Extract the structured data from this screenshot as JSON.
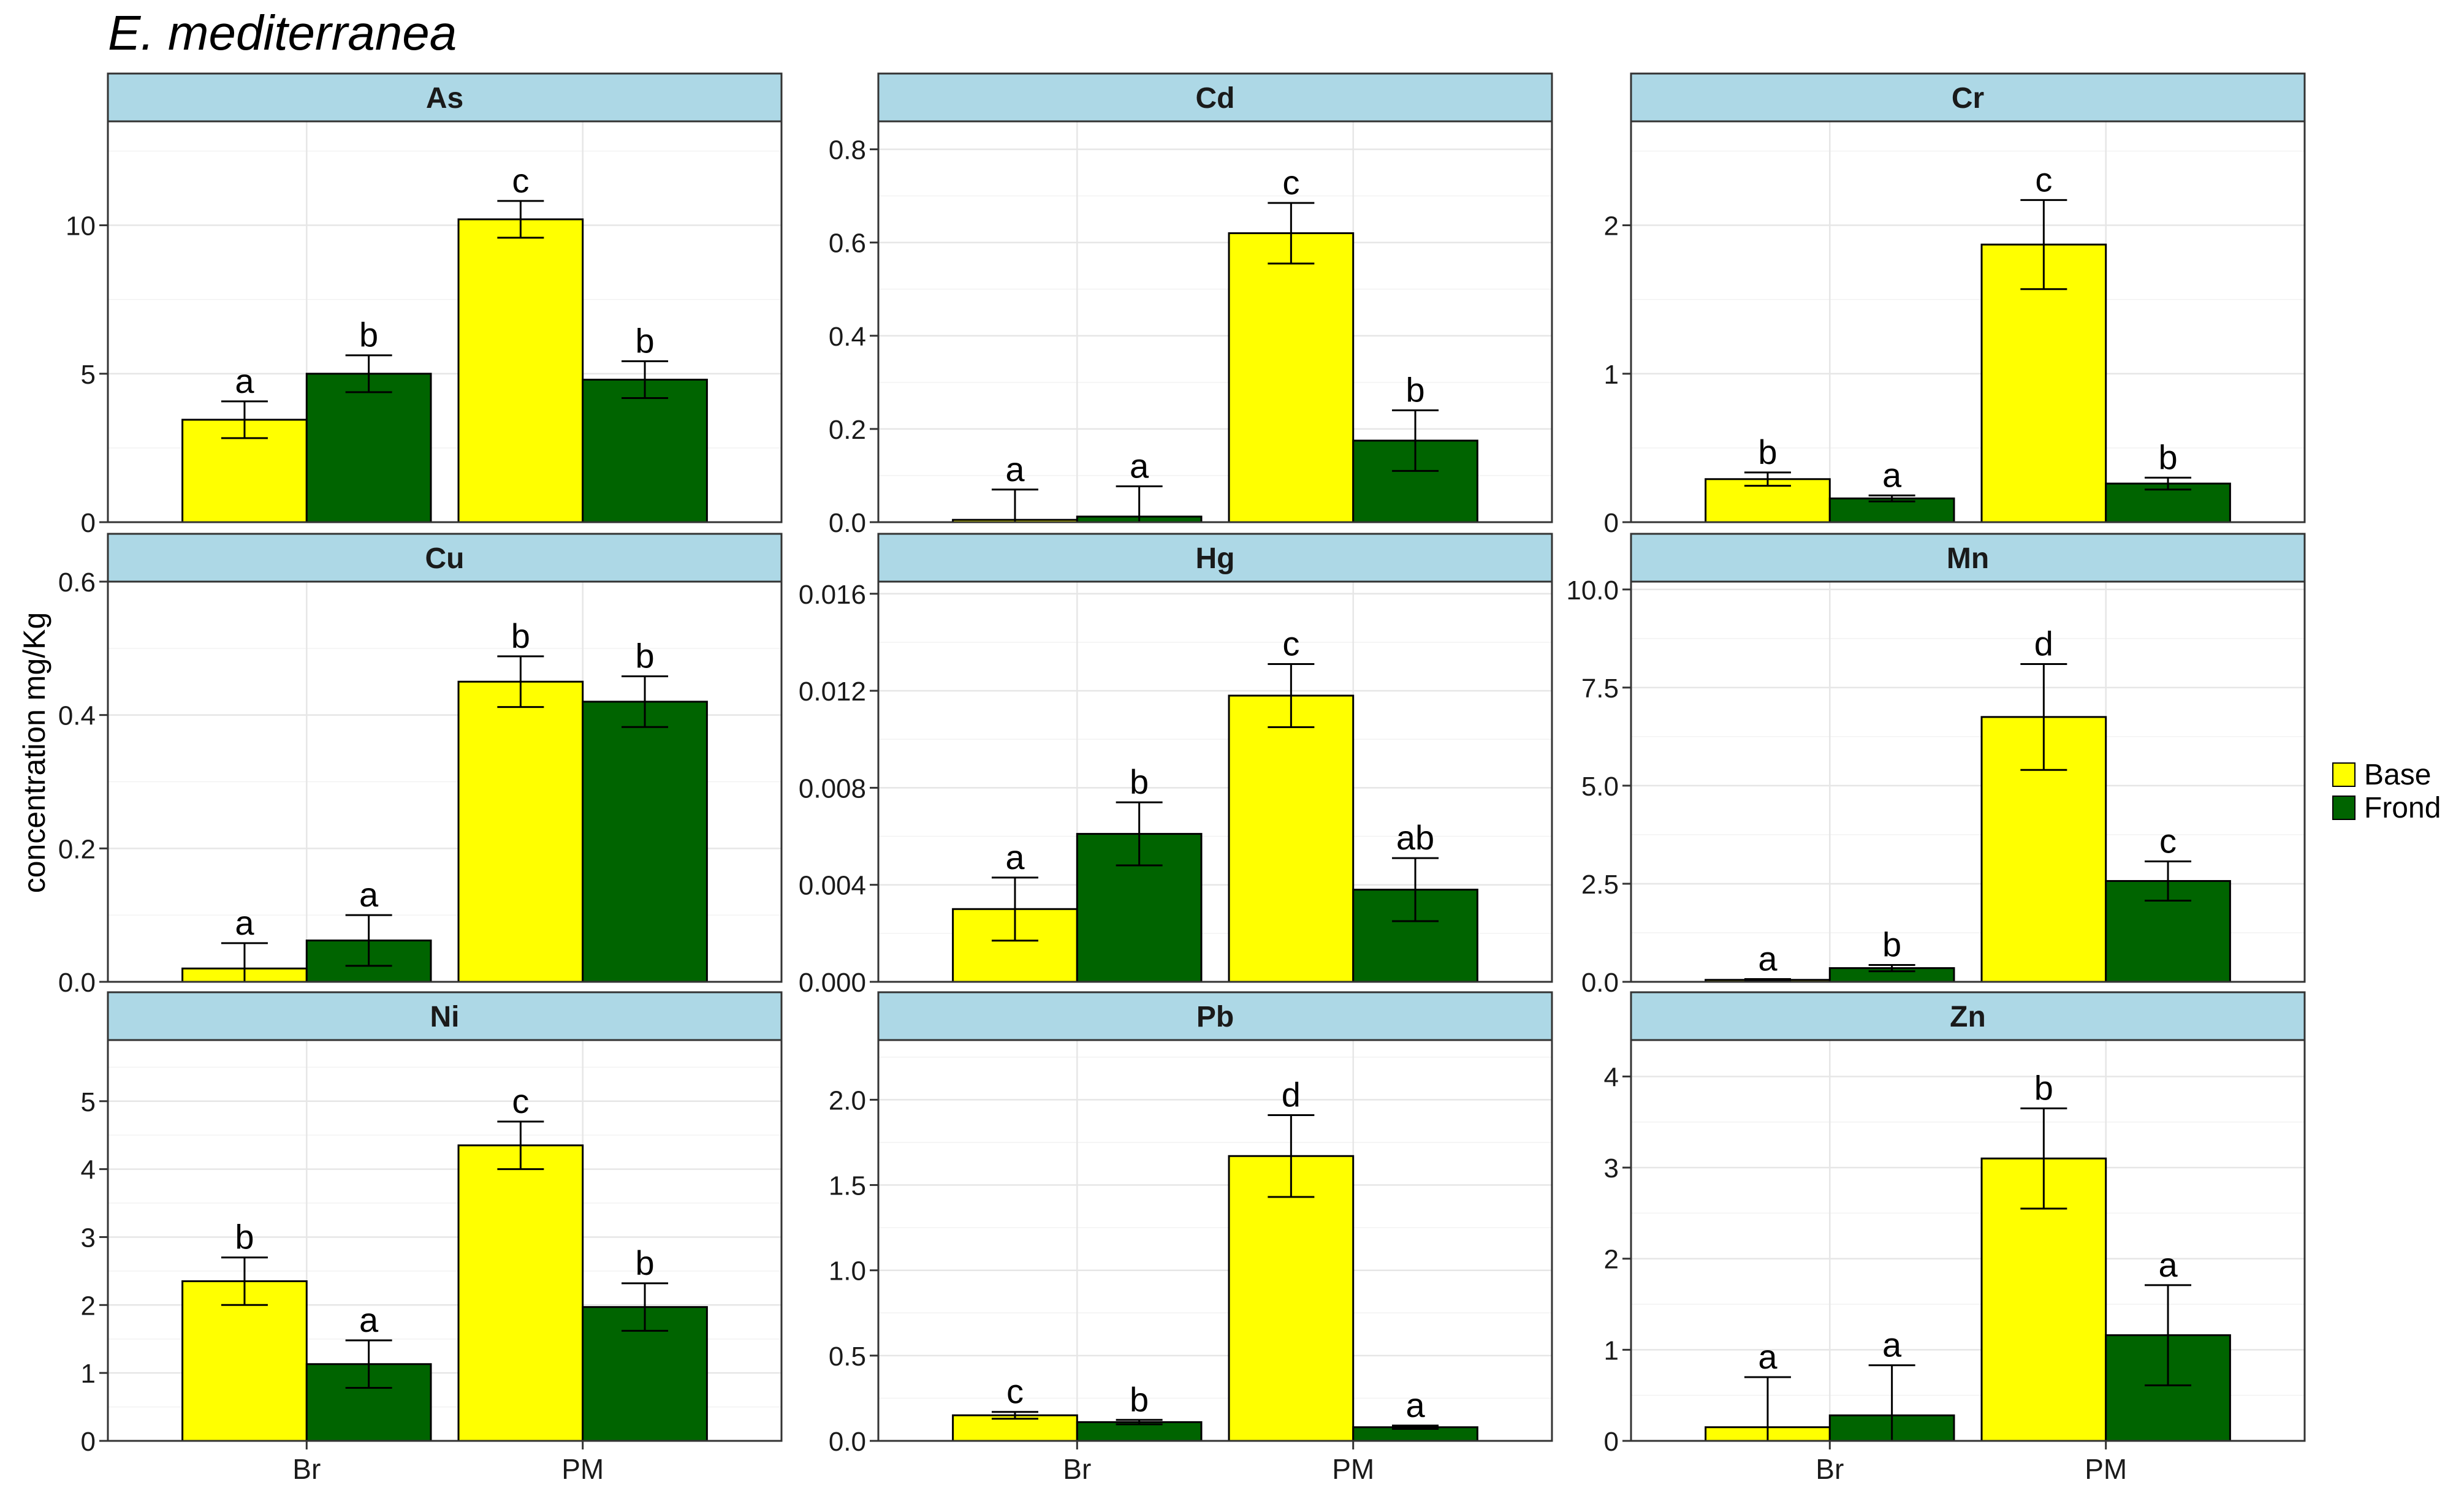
{
  "title": "E. mediterranea",
  "ylabel": "concentration mg/Kg",
  "colors": {
    "Base": "#FFFF00",
    "Frond": "#006400",
    "strip": "#ADD8E6"
  },
  "legend": [
    {
      "label": "Base",
      "color": "#FFFF00"
    },
    {
      "label": "Frond",
      "color": "#006400"
    }
  ],
  "chart_data": [
    {
      "type": "bar",
      "title": "As",
      "categories": [
        "Br",
        "PM"
      ],
      "xlabel": "",
      "ylabel": "concentration mg/Kg",
      "ylim": [
        0,
        13.5
      ],
      "yticks": [
        0,
        5,
        10
      ],
      "ytick_labels": [
        "0",
        "5",
        "10"
      ],
      "grid": true,
      "series": [
        {
          "name": "Base",
          "values": [
            3.45,
            10.2
          ],
          "errors": [
            0.62,
            0.62
          ],
          "letters": [
            "a",
            "c"
          ]
        },
        {
          "name": "Frond",
          "values": [
            5.0,
            4.8
          ],
          "errors": [
            0.62,
            0.62
          ],
          "letters": [
            "b",
            "b"
          ]
        }
      ]
    },
    {
      "type": "bar",
      "title": "Cd",
      "categories": [
        "Br",
        "PM"
      ],
      "xlabel": "",
      "ylabel": "concentration mg/Kg",
      "ylim": [
        0,
        0.86
      ],
      "yticks": [
        0,
        0.2,
        0.4,
        0.6,
        0.8
      ],
      "ytick_labels": [
        "0.0",
        "0.2",
        "0.4",
        "0.6",
        "0.8"
      ],
      "grid": true,
      "series": [
        {
          "name": "Base",
          "values": [
            0.005,
            0.62
          ],
          "errors": [
            0.065,
            0.065
          ],
          "letters": [
            "a",
            "c"
          ]
        },
        {
          "name": "Frond",
          "values": [
            0.012,
            0.175
          ],
          "errors": [
            0.065,
            0.065
          ],
          "letters": [
            "a",
            "b"
          ]
        }
      ]
    },
    {
      "type": "bar",
      "title": "Cr",
      "categories": [
        "Br",
        "PM"
      ],
      "xlabel": "",
      "ylabel": "concentration mg/Kg",
      "ylim": [
        0,
        2.7
      ],
      "yticks": [
        0,
        1,
        2
      ],
      "ytick_labels": [
        "0",
        "1",
        "2"
      ],
      "grid": true,
      "series": [
        {
          "name": "Base",
          "values": [
            0.29,
            1.87
          ],
          "errors": [
            0.045,
            0.3
          ],
          "letters": [
            "b",
            "c"
          ]
        },
        {
          "name": "Frond",
          "values": [
            0.16,
            0.26
          ],
          "errors": [
            0.02,
            0.04
          ],
          "letters": [
            "a",
            "b"
          ]
        }
      ]
    },
    {
      "type": "bar",
      "title": "Cu",
      "categories": [
        "Br",
        "PM"
      ],
      "xlabel": "",
      "ylabel": "concentration mg/Kg",
      "ylim": [
        0,
        0.6
      ],
      "yticks": [
        0,
        0.2,
        0.4,
        0.6
      ],
      "ytick_labels": [
        "0.0",
        "0.2",
        "0.4",
        "0.6"
      ],
      "grid": true,
      "series": [
        {
          "name": "Base",
          "values": [
            0.02,
            0.45
          ],
          "errors": [
            0.038,
            0.038
          ],
          "letters": [
            "a",
            "b"
          ]
        },
        {
          "name": "Frond",
          "values": [
            0.062,
            0.42
          ],
          "errors": [
            0.038,
            0.038
          ],
          "letters": [
            "a",
            "b"
          ]
        }
      ]
    },
    {
      "type": "bar",
      "title": "Hg",
      "categories": [
        "Br",
        "PM"
      ],
      "xlabel": "",
      "ylabel": "concentration mg/Kg",
      "ylim": [
        0,
        0.0165
      ],
      "yticks": [
        0,
        0.004,
        0.008,
        0.012,
        0.016
      ],
      "ytick_labels": [
        "0.000",
        "0.004",
        "0.008",
        "0.012",
        "0.016"
      ],
      "grid": true,
      "series": [
        {
          "name": "Base",
          "values": [
            0.003,
            0.0118
          ],
          "errors": [
            0.0013,
            0.0013
          ],
          "letters": [
            "a",
            "c"
          ]
        },
        {
          "name": "Frond",
          "values": [
            0.0061,
            0.0038
          ],
          "errors": [
            0.0013,
            0.0013
          ],
          "letters": [
            "b",
            "ab"
          ]
        }
      ]
    },
    {
      "type": "bar",
      "title": "Mn",
      "categories": [
        "Br",
        "PM"
      ],
      "xlabel": "",
      "ylabel": "concentration mg/Kg",
      "ylim": [
        0,
        10.2
      ],
      "yticks": [
        0,
        2.5,
        5,
        7.5,
        10
      ],
      "ytick_labels": [
        "0.0",
        "2.5",
        "5.0",
        "7.5",
        "10.0"
      ],
      "grid": true,
      "series": [
        {
          "name": "Base",
          "values": [
            0.05,
            6.75
          ],
          "errors": [
            0.02,
            1.35
          ],
          "letters": [
            "a",
            "d"
          ]
        },
        {
          "name": "Frond",
          "values": [
            0.35,
            2.57
          ],
          "errors": [
            0.08,
            0.5
          ],
          "letters": [
            "b",
            "c"
          ]
        }
      ]
    },
    {
      "type": "bar",
      "title": "Ni",
      "categories": [
        "Br",
        "PM"
      ],
      "xlabel": "",
      "ylabel": "concentration mg/Kg",
      "ylim": [
        0,
        5.9
      ],
      "yticks": [
        0,
        1,
        2,
        3,
        4,
        5
      ],
      "ytick_labels": [
        "0",
        "1",
        "2",
        "3",
        "4",
        "5"
      ],
      "grid": true,
      "series": [
        {
          "name": "Base",
          "values": [
            2.35,
            4.35
          ],
          "errors": [
            0.35,
            0.35
          ],
          "letters": [
            "b",
            "c"
          ]
        },
        {
          "name": "Frond",
          "values": [
            1.13,
            1.97
          ],
          "errors": [
            0.35,
            0.35
          ],
          "letters": [
            "a",
            "b"
          ]
        }
      ]
    },
    {
      "type": "bar",
      "title": "Pb",
      "categories": [
        "Br",
        "PM"
      ],
      "xlabel": "",
      "ylabel": "concentration mg/Kg",
      "ylim": [
        0,
        2.35
      ],
      "yticks": [
        0,
        0.5,
        1,
        1.5,
        2
      ],
      "ytick_labels": [
        "0.0",
        "0.5",
        "1.0",
        "1.5",
        "2.0"
      ],
      "grid": true,
      "series": [
        {
          "name": "Base",
          "values": [
            0.15,
            1.67
          ],
          "errors": [
            0.02,
            0.24
          ],
          "letters": [
            "c",
            "d"
          ]
        },
        {
          "name": "Frond",
          "values": [
            0.11,
            0.08
          ],
          "errors": [
            0.013,
            0.01
          ],
          "letters": [
            "b",
            "a"
          ]
        }
      ]
    },
    {
      "type": "bar",
      "title": "Zn",
      "categories": [
        "Br",
        "PM"
      ],
      "xlabel": "",
      "ylabel": "concentration mg/Kg",
      "ylim": [
        0,
        4.4
      ],
      "yticks": [
        0,
        1,
        2,
        3,
        4
      ],
      "ytick_labels": [
        "0",
        "1",
        "2",
        "3",
        "4"
      ],
      "grid": true,
      "series": [
        {
          "name": "Base",
          "values": [
            0.15,
            3.1
          ],
          "errors": [
            0.55,
            0.55
          ],
          "letters": [
            "a",
            "b"
          ]
        },
        {
          "name": "Frond",
          "values": [
            0.28,
            1.16
          ],
          "errors": [
            0.55,
            0.55
          ],
          "letters": [
            "a",
            "a"
          ]
        }
      ]
    }
  ]
}
